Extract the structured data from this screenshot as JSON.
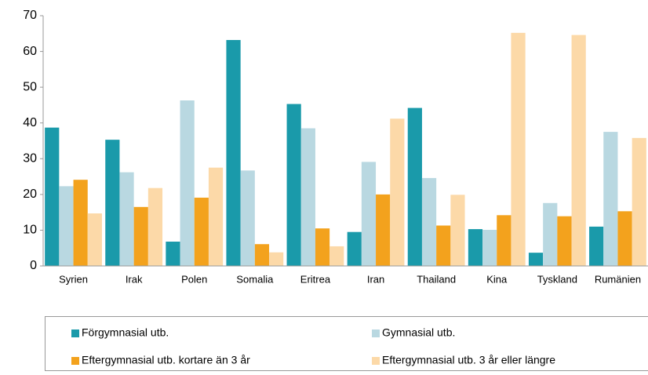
{
  "chart_data": {
    "type": "bar",
    "categories": [
      "Syrien",
      "Irak",
      "Polen",
      "Somalia",
      "Eritrea",
      "Iran",
      "Thailand",
      "Kina",
      "Tyskland",
      "Rumänien"
    ],
    "series": [
      {
        "name": "Förgymnasial utb.",
        "color": "#1a9aaa",
        "values": [
          38.7,
          35.3,
          6.8,
          63.2,
          45.3,
          9.5,
          44.2,
          10.3,
          3.7,
          11.0
        ]
      },
      {
        "name": "Gymnasial utb.",
        "color": "#b9d8e1",
        "values": [
          22.3,
          26.2,
          46.3,
          26.7,
          38.5,
          29.1,
          24.6,
          10.1,
          17.6,
          37.5
        ]
      },
      {
        "name": "Eftergymnasial utb. kortare än 3 år",
        "color": "#f3a21d",
        "values": [
          24.1,
          16.5,
          19.1,
          6.1,
          10.5,
          20.0,
          11.3,
          14.2,
          13.9,
          15.3
        ]
      },
      {
        "name": "Eftergymnasial utb. 3 år eller längre",
        "color": "#fcd9a8",
        "values": [
          14.7,
          21.8,
          27.5,
          3.8,
          5.5,
          41.2,
          19.9,
          65.2,
          64.6,
          35.8
        ]
      }
    ],
    "ylim": [
      0,
      70
    ],
    "yticks": [
      0,
      10,
      20,
      30,
      40,
      50,
      60,
      70
    ],
    "grid": false
  }
}
